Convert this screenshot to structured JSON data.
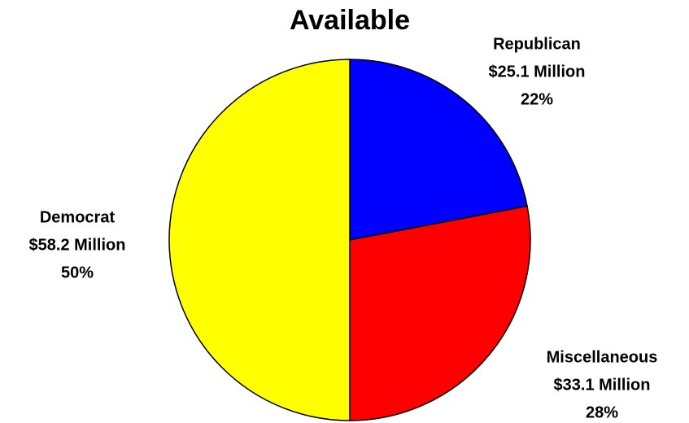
{
  "chart_data": {
    "type": "pie",
    "title": "Available",
    "categories": [
      "Republican",
      "Miscellaneous",
      "Democrat"
    ],
    "values": [
      22,
      28,
      50
    ],
    "value_labels": [
      "22%",
      "28%",
      "50%"
    ],
    "amount_labels": [
      "$25.1 Million",
      "$33.1 Million",
      "$58.2 Million"
    ],
    "colors": [
      "#0000ff",
      "#ff0000",
      "#ffff00"
    ]
  }
}
